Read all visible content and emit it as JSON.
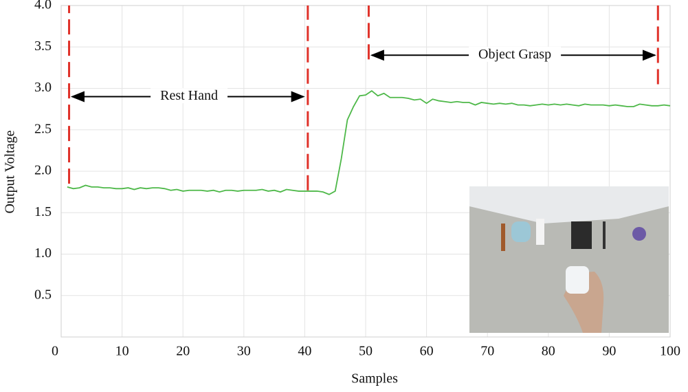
{
  "chart_data": {
    "type": "line",
    "xlabel": "Samples",
    "ylabel": "Output Voltage",
    "x": [
      1,
      2,
      3,
      4,
      5,
      6,
      7,
      8,
      9,
      10,
      11,
      12,
      13,
      14,
      15,
      16,
      17,
      18,
      19,
      20,
      21,
      22,
      23,
      24,
      25,
      26,
      27,
      28,
      29,
      30,
      31,
      32,
      33,
      34,
      35,
      36,
      37,
      38,
      39,
      40,
      41,
      42,
      43,
      44,
      45,
      46,
      47,
      48,
      49,
      50,
      51,
      52,
      53,
      54,
      55,
      56,
      57,
      58,
      59,
      60,
      61,
      62,
      63,
      64,
      65,
      66,
      67,
      68,
      69,
      70,
      71,
      72,
      73,
      74,
      75,
      76,
      77,
      78,
      79,
      80,
      81,
      82,
      83,
      84,
      85,
      86,
      87,
      88,
      89,
      90,
      91,
      92,
      93,
      94,
      95,
      96,
      97,
      98,
      99,
      100
    ],
    "series": [
      {
        "color": "#4db848",
        "values": [
          1.81,
          1.79,
          1.8,
          1.83,
          1.81,
          1.81,
          1.8,
          1.8,
          1.79,
          1.79,
          1.8,
          1.78,
          1.8,
          1.79,
          1.8,
          1.8,
          1.79,
          1.77,
          1.78,
          1.76,
          1.77,
          1.77,
          1.77,
          1.76,
          1.77,
          1.75,
          1.77,
          1.77,
          1.76,
          1.77,
          1.77,
          1.77,
          1.78,
          1.76,
          1.77,
          1.75,
          1.78,
          1.77,
          1.76,
          1.76,
          1.76,
          1.76,
          1.75,
          1.72,
          1.76,
          2.15,
          2.62,
          2.78,
          2.91,
          2.92,
          2.97,
          2.91,
          2.94,
          2.89,
          2.89,
          2.89,
          2.88,
          2.86,
          2.87,
          2.82,
          2.87,
          2.85,
          2.84,
          2.83,
          2.84,
          2.83,
          2.83,
          2.8,
          2.83,
          2.82,
          2.81,
          2.82,
          2.81,
          2.82,
          2.8,
          2.8,
          2.79,
          2.8,
          2.81,
          2.8,
          2.81,
          2.8,
          2.81,
          2.8,
          2.79,
          2.81,
          2.8,
          2.8,
          2.8,
          2.79,
          2.8,
          2.79,
          2.78,
          2.78,
          2.81,
          2.8,
          2.79,
          2.79,
          2.8,
          2.79
        ]
      }
    ],
    "xlim": [
      0,
      100
    ],
    "xticks": [
      0,
      10,
      20,
      30,
      40,
      50,
      60,
      70,
      80,
      90,
      100
    ],
    "ylim": [
      0,
      4.0
    ],
    "yticks": [
      {
        "value": 0.5,
        "label": "0.5"
      },
      {
        "value": 1.0,
        "label": "1.0"
      },
      {
        "value": 1.5,
        "label": "1.5"
      },
      {
        "value": 2.0,
        "label": "2.0"
      },
      {
        "value": 2.5,
        "label": "2.5"
      },
      {
        "value": 3.0,
        "label": "3.0"
      },
      {
        "value": 3.5,
        "label": "3.5"
      },
      {
        "value": 4.0,
        "label": "4.0"
      }
    ],
    "grid": true,
    "vlines": {
      "color": "#e0322a",
      "lines": [
        {
          "x": 1.3,
          "y": [
            1.85,
            4.0
          ]
        },
        {
          "x": 40.5,
          "y": [
            1.77,
            4.0
          ]
        },
        {
          "x": 50.5,
          "y": [
            3.35,
            4.0
          ]
        },
        {
          "x": 98,
          "y": [
            3.05,
            4.0
          ]
        }
      ]
    },
    "annotations": [
      {
        "text": "Rest Hand",
        "x": 21,
        "y": 2.9,
        "arrow": [
          1.8,
          39.8
        ]
      },
      {
        "text": "Object Grasp",
        "x": 74.5,
        "y": 3.4,
        "arrow": [
          51,
          97.5
        ]
      }
    ]
  }
}
